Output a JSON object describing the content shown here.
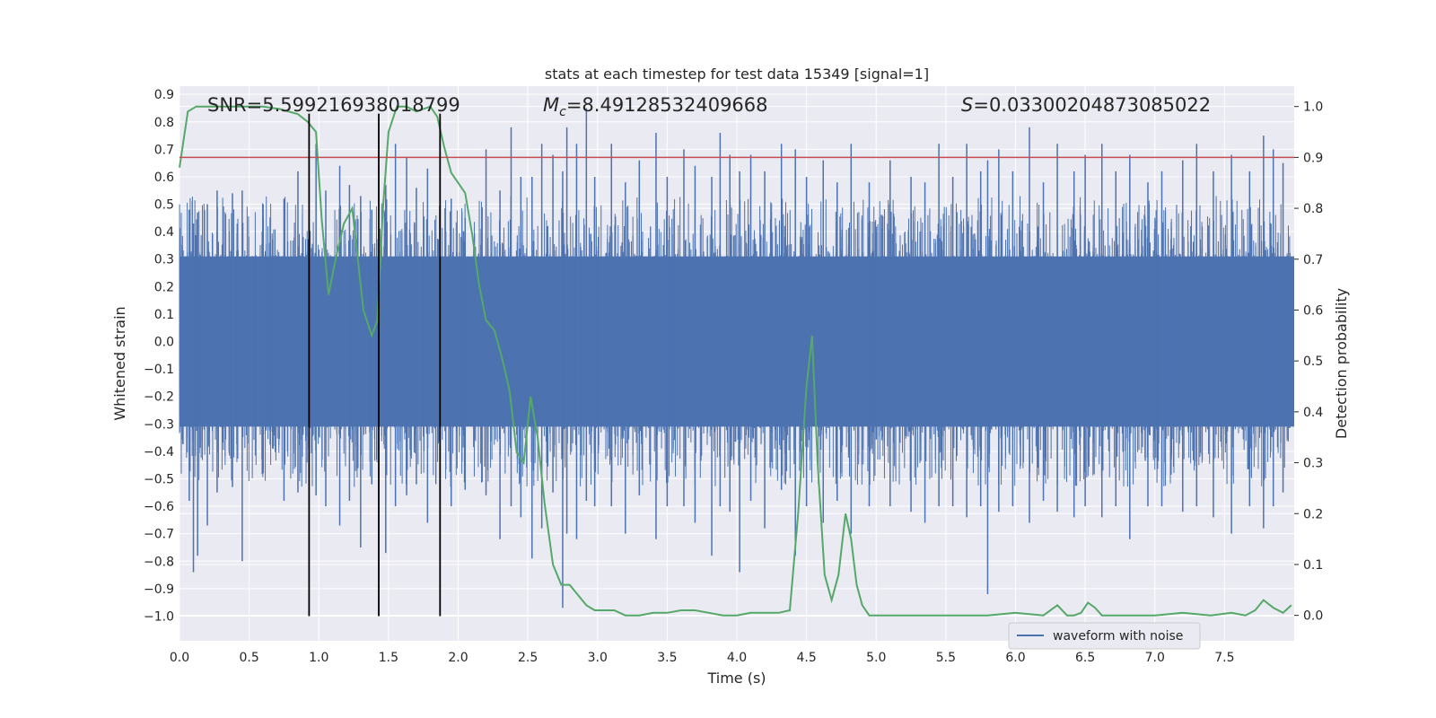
{
  "chart_data": {
    "type": "line",
    "title": "stats at each timestep for test data 15349 [signal=1]",
    "xlabel": "Time (s)",
    "ylabel": "Whitened strain",
    "y2label": "Detection probability",
    "xlim": [
      0.0,
      8.0
    ],
    "ylim": [
      -1.09,
      0.93
    ],
    "y2lim": [
      -0.05,
      1.04
    ],
    "xticks": [
      0.0,
      0.5,
      1.0,
      1.5,
      2.0,
      2.5,
      3.0,
      3.5,
      4.0,
      4.5,
      5.0,
      5.5,
      6.0,
      6.5,
      7.0,
      7.5
    ],
    "xtick_labels": [
      "0.0",
      "0.5",
      "1.0",
      "1.5",
      "2.0",
      "2.5",
      "3.0",
      "3.5",
      "4.0",
      "4.5",
      "5.0",
      "5.5",
      "6.0",
      "6.5",
      "7.0",
      "7.5"
    ],
    "yticks": [
      0.9,
      0.8,
      0.7,
      0.6,
      0.5,
      0.4,
      0.3,
      0.2,
      0.1,
      0.0,
      -0.1,
      -0.2,
      -0.3,
      -0.4,
      -0.5,
      -0.6,
      -0.7,
      -0.8,
      -0.9,
      -1.0
    ],
    "ytick_labels": [
      "0.9",
      "0.8",
      "0.7",
      "0.6",
      "0.5",
      "0.4",
      "0.3",
      "0.2",
      "0.1",
      "0.0",
      "−0.1",
      "−0.2",
      "−0.3",
      "−0.4",
      "−0.5",
      "−0.6",
      "−0.7",
      "−0.8",
      "−0.9",
      "−1.0"
    ],
    "y2ticks": [
      1.0,
      0.9,
      0.8,
      0.7,
      0.6,
      0.5,
      0.4,
      0.3,
      0.2,
      0.1,
      0.0
    ],
    "y2tick_labels": [
      "1.0",
      "0.9",
      "0.8",
      "0.7",
      "0.6",
      "0.5",
      "0.4",
      "0.3",
      "0.2",
      "0.1",
      "0.0"
    ],
    "annotations": {
      "snr": "SNR=5.599216938018799",
      "mc_symbol": "M",
      "mc_sub": "c",
      "mc_value": "=8.49128532409668",
      "s_symbol": "S",
      "s_value": "=0.03300204873085022"
    },
    "legend": {
      "label": "waveform with noise",
      "position": "lower-right"
    },
    "threshold": 0.9,
    "vlines": [
      0.93,
      1.43,
      1.87
    ],
    "grid": true,
    "colors": {
      "background": "#eaeaf2",
      "grid": "#ffffff",
      "waveform": "#4c72b0",
      "probability": "#55a868",
      "threshold": "#c44e52",
      "vline": "#000000"
    },
    "series": [
      {
        "axis": "left",
        "style": "dense noise fill",
        "noise_bulk": 0.31,
        "spike_t": [
          0.07,
          0.1,
          0.13,
          0.2,
          0.27,
          0.38,
          0.45,
          0.6,
          0.75,
          0.85,
          0.98,
          1.05,
          1.15,
          1.22,
          1.3,
          1.38,
          1.48,
          1.55,
          1.63,
          1.7,
          1.78,
          1.95,
          2.05,
          2.2,
          2.3,
          2.38,
          2.45,
          2.53,
          2.6,
          2.68,
          2.75,
          2.78,
          2.85,
          2.92,
          2.98,
          3.1,
          3.2,
          3.3,
          3.42,
          3.5,
          3.62,
          3.7,
          3.82,
          3.88,
          3.95,
          4.02,
          4.1,
          4.2,
          4.32,
          4.42,
          4.5,
          4.62,
          4.72,
          4.82,
          4.95,
          5.1,
          5.25,
          5.35,
          5.45,
          5.55,
          5.65,
          5.75,
          5.8,
          5.88,
          5.98,
          6.1,
          6.2,
          6.3,
          6.42,
          6.5,
          6.62,
          6.72,
          6.82,
          6.95,
          7.05,
          7.2,
          7.3,
          7.42,
          7.55,
          7.68,
          7.78,
          7.85,
          7.92
        ],
        "spike_up": [
          0.48,
          0.43,
          0.47,
          0.5,
          0.55,
          0.54,
          0.55,
          0.5,
          0.52,
          0.62,
          0.72,
          0.55,
          0.64,
          0.57,
          0.53,
          0.48,
          0.57,
          0.72,
          0.67,
          0.56,
          0.63,
          0.52,
          0.45,
          0.7,
          0.55,
          0.78,
          0.6,
          0.6,
          0.72,
          0.68,
          0.62,
          0.78,
          0.72,
          0.85,
          0.6,
          0.72,
          0.58,
          0.66,
          0.76,
          0.6,
          0.7,
          0.64,
          0.6,
          0.76,
          0.68,
          0.62,
          0.68,
          0.62,
          0.72,
          0.7,
          0.6,
          0.66,
          0.58,
          0.72,
          0.58,
          0.66,
          0.6,
          0.58,
          0.72,
          0.6,
          0.72,
          0.62,
          0.66,
          0.7,
          0.62,
          0.78,
          0.58,
          0.72,
          0.62,
          0.68,
          0.72,
          0.62,
          0.68,
          0.58,
          0.62,
          0.66,
          0.72,
          0.62,
          0.68,
          0.62,
          0.75,
          0.7,
          0.65
        ],
        "spike_dn": [
          -0.58,
          -0.84,
          -0.78,
          -0.67,
          -0.55,
          -0.53,
          -0.8,
          -0.48,
          -0.58,
          -0.55,
          -0.56,
          -0.6,
          -0.67,
          -0.58,
          -0.75,
          -0.52,
          -0.77,
          -0.6,
          -0.56,
          -0.52,
          -0.66,
          -0.6,
          -0.54,
          -0.56,
          -0.72,
          -0.6,
          -0.64,
          -0.79,
          -0.68,
          -0.55,
          -0.97,
          -0.7,
          -0.72,
          -0.58,
          -0.6,
          -0.6,
          -0.7,
          -0.56,
          -0.72,
          -0.6,
          -0.6,
          -0.66,
          -0.78,
          -0.6,
          -0.62,
          -0.84,
          -0.58,
          -0.68,
          -0.54,
          -0.78,
          -0.6,
          -0.66,
          -0.58,
          -0.7,
          -0.6,
          -0.6,
          -0.62,
          -0.66,
          -0.6,
          -0.6,
          -0.64,
          -0.6,
          -0.92,
          -0.62,
          -0.6,
          -0.66,
          -0.58,
          -0.62,
          -0.64,
          -0.6,
          -0.64,
          -0.6,
          -0.72,
          -0.6,
          -0.6,
          -0.62,
          -0.6,
          -0.64,
          -0.7,
          -0.6,
          -0.68,
          -0.6,
          -0.55
        ]
      },
      {
        "axis": "right",
        "x": [
          0.0,
          0.06,
          0.12,
          0.2,
          0.3,
          0.45,
          0.6,
          0.72,
          0.85,
          0.92,
          0.98,
          1.02,
          1.07,
          1.12,
          1.18,
          1.24,
          1.32,
          1.38,
          1.42,
          1.46,
          1.5,
          1.56,
          1.63,
          1.7,
          1.8,
          1.85,
          1.9,
          1.95,
          2.0,
          2.05,
          2.1,
          2.15,
          2.2,
          2.26,
          2.32,
          2.37,
          2.42,
          2.47,
          2.52,
          2.57,
          2.62,
          2.68,
          2.74,
          2.8,
          2.86,
          2.92,
          2.98,
          3.05,
          3.12,
          3.2,
          3.3,
          3.4,
          3.5,
          3.6,
          3.7,
          3.8,
          3.9,
          4.0,
          4.1,
          4.2,
          4.3,
          4.38,
          4.44,
          4.5,
          4.54,
          4.58,
          4.63,
          4.68,
          4.73,
          4.78,
          4.82,
          4.86,
          4.9,
          4.95,
          5.0,
          5.2,
          5.5,
          5.8,
          6.0,
          6.2,
          6.3,
          6.37,
          6.42,
          6.47,
          6.52,
          6.57,
          6.62,
          6.7,
          6.8,
          7.0,
          7.2,
          7.4,
          7.55,
          7.65,
          7.72,
          7.78,
          7.85,
          7.92,
          7.98
        ],
        "y": [
          0.88,
          0.99,
          1.0,
          1.0,
          1.0,
          1.0,
          1.0,
          0.995,
          0.985,
          0.97,
          0.95,
          0.78,
          0.63,
          0.7,
          0.77,
          0.8,
          0.6,
          0.55,
          0.58,
          0.8,
          0.95,
          1.0,
          1.0,
          0.99,
          1.0,
          0.98,
          0.92,
          0.87,
          0.85,
          0.83,
          0.75,
          0.65,
          0.58,
          0.56,
          0.5,
          0.44,
          0.32,
          0.3,
          0.43,
          0.35,
          0.22,
          0.1,
          0.06,
          0.06,
          0.04,
          0.02,
          0.01,
          0.01,
          0.01,
          0.0,
          0.0,
          0.005,
          0.005,
          0.01,
          0.01,
          0.005,
          0.0,
          0.0,
          0.005,
          0.005,
          0.005,
          0.01,
          0.2,
          0.45,
          0.55,
          0.3,
          0.08,
          0.03,
          0.08,
          0.2,
          0.15,
          0.06,
          0.02,
          0.0,
          0.0,
          0.0,
          0.0,
          0.0,
          0.005,
          0.0,
          0.02,
          0.0,
          0.0,
          0.005,
          0.025,
          0.015,
          0.0,
          0.0,
          0.0,
          0.0,
          0.005,
          0.0,
          0.005,
          0.0,
          0.01,
          0.03,
          0.015,
          0.005,
          0.02
        ]
      }
    ]
  }
}
